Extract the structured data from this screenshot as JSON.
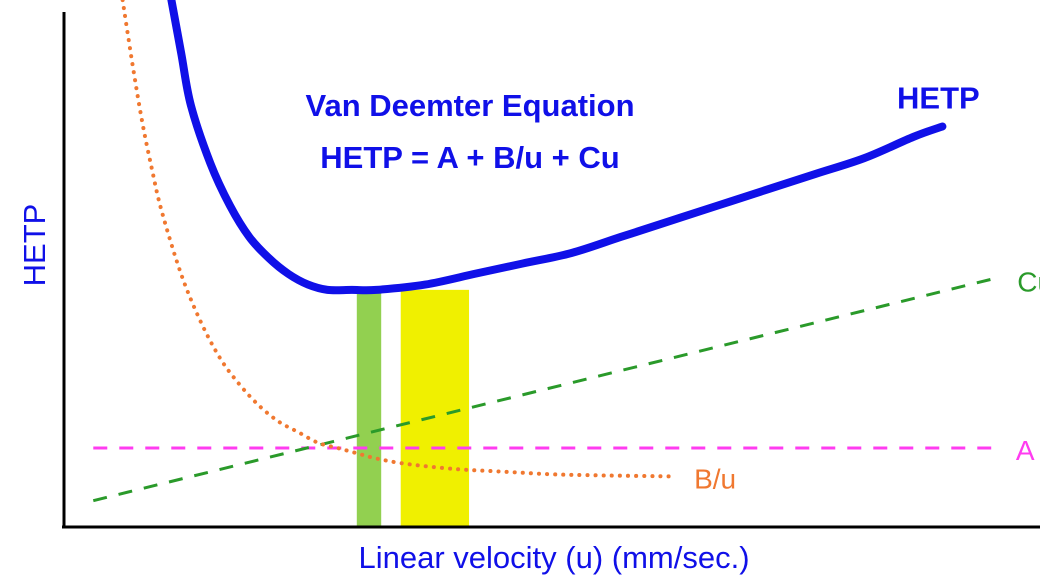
{
  "chart_data": {
    "type": "line",
    "title": "Van Deemter Equation",
    "subtitle": "HETP = A + B/u + Cu",
    "xlabel": "Linear velocity (u) (mm/sec.)",
    "ylabel": "HETP",
    "xlim": [
      0,
      100
    ],
    "ylim": [
      0,
      100
    ],
    "grid": false,
    "series": [
      {
        "name": "HETP",
        "style": "solid",
        "color": "#1010e8",
        "x": [
          11,
          12,
          13,
          15,
          17,
          19,
          21,
          23,
          25,
          27,
          29.5,
          32,
          37,
          42,
          47,
          52,
          57,
          62,
          67,
          72,
          77,
          82,
          87,
          90
        ],
        "y": [
          100,
          90,
          80,
          69,
          61,
          55,
          51,
          48,
          46,
          45,
          45,
          45,
          46,
          48,
          50,
          52,
          55,
          58,
          61,
          64,
          67,
          70,
          74,
          76
        ]
      },
      {
        "name": "Cu",
        "style": "dashed",
        "color": "#2a9a2a",
        "x": [
          3,
          95
        ],
        "y": [
          5,
          47
        ]
      },
      {
        "name": "A",
        "style": "dashed",
        "color": "#ff3cf0",
        "x": [
          3,
          95
        ],
        "y": [
          15,
          15
        ]
      },
      {
        "name": "B/u",
        "style": "dotted",
        "color": "#f07830",
        "x": [
          6,
          7,
          8,
          9,
          10,
          12,
          14,
          16,
          18,
          20,
          22,
          24,
          26,
          28,
          30,
          32,
          35,
          40,
          45,
          50,
          55,
          62
        ],
        "y": [
          100,
          88,
          77,
          68,
          60,
          48,
          39,
          32,
          27,
          23,
          20,
          18,
          16,
          15,
          14,
          13,
          12,
          11,
          10.5,
          10,
          9.8,
          9.6
        ]
      }
    ],
    "bands": [
      {
        "name": "green-band",
        "color": "#92d050",
        "x": [
          30,
          32.5
        ],
        "y": [
          0,
          45
        ]
      },
      {
        "name": "yellow-band",
        "color": "#f0f000",
        "x": [
          34.5,
          41.5
        ],
        "y": [
          0,
          45
        ]
      }
    ]
  }
}
